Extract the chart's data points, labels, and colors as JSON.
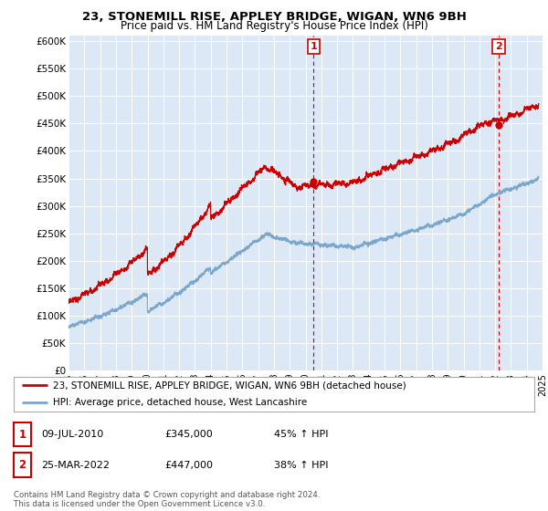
{
  "title1": "23, STONEMILL RISE, APPLEY BRIDGE, WIGAN, WN6 9BH",
  "title2": "Price paid vs. HM Land Registry's House Price Index (HPI)",
  "ylabel_ticks": [
    "£0",
    "£50K",
    "£100K",
    "£150K",
    "£200K",
    "£250K",
    "£300K",
    "£350K",
    "£400K",
    "£450K",
    "£500K",
    "£550K",
    "£600K"
  ],
  "ytick_values": [
    0,
    50000,
    100000,
    150000,
    200000,
    250000,
    300000,
    350000,
    400000,
    450000,
    500000,
    550000,
    600000
  ],
  "xlim_start": 1995,
  "xlim_end": 2025,
  "ylim_max": 610000,
  "red_color": "#cc0000",
  "blue_color": "#7ba7cc",
  "sale1_year": 2010.52,
  "sale1_price": 345000,
  "sale1_label": "1",
  "sale2_year": 2022.23,
  "sale2_price": 447000,
  "sale2_label": "2",
  "legend_line1": "23, STONEMILL RISE, APPLEY BRIDGE, WIGAN, WN6 9BH (detached house)",
  "legend_line2": "HPI: Average price, detached house, West Lancashire",
  "table_row1": [
    "1",
    "09-JUL-2010",
    "£345,000",
    "45% ↑ HPI"
  ],
  "table_row2": [
    "2",
    "25-MAR-2022",
    "£447,000",
    "38% ↑ HPI"
  ],
  "footnote1": "Contains HM Land Registry data © Crown copyright and database right 2024.",
  "footnote2": "This data is licensed under the Open Government Licence v3.0.",
  "background_color": "#ffffff",
  "plot_bg_color": "#dce8f5"
}
